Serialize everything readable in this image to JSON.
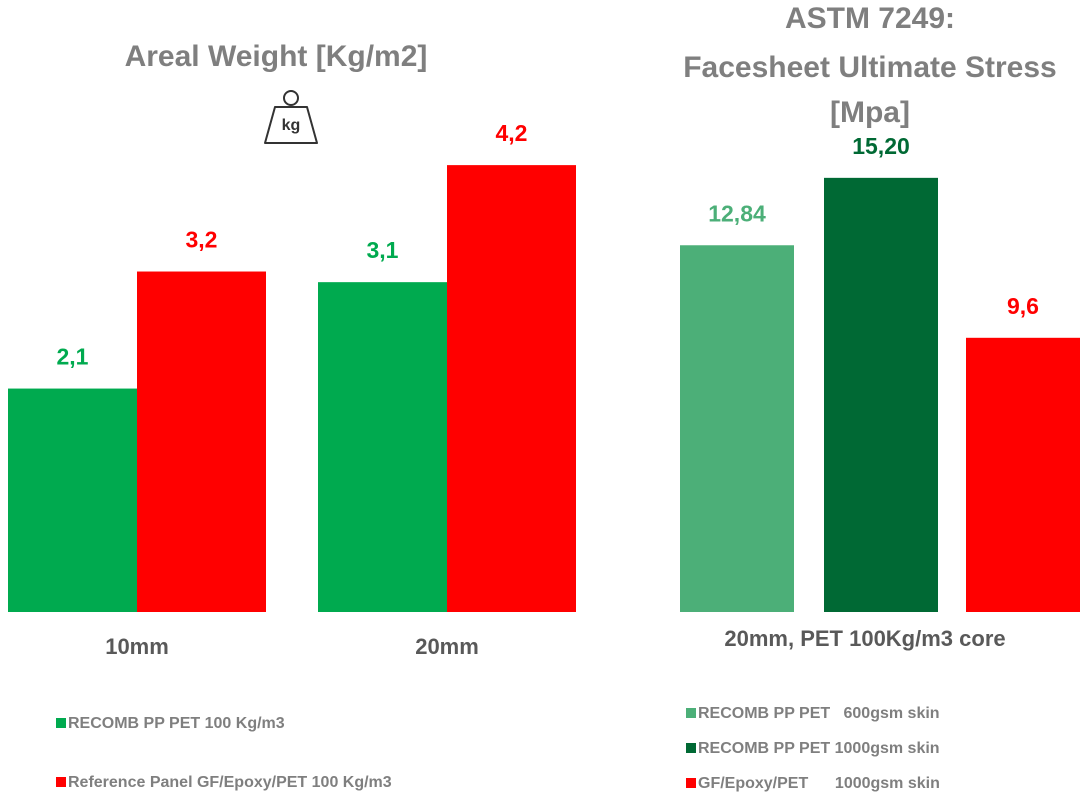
{
  "chart_data": [
    {
      "type": "bar",
      "title": "Areal Weight [Kg/m2]",
      "categories": [
        "10mm",
        "20mm"
      ],
      "series": [
        {
          "name": "RECOMB PP PET 100 Kg/m3",
          "color": "#00aa4f",
          "values": [
            2.1,
            3.1
          ],
          "value_labels": [
            "2,1",
            "3,1"
          ]
        },
        {
          "name": "Reference Panel GF/Epoxy/PET 100 Kg/m3",
          "color": "#ff0000",
          "values": [
            3.2,
            4.2
          ],
          "value_labels": [
            "3,2",
            "4,2"
          ]
        }
      ],
      "ylim": [
        0,
        5
      ]
    },
    {
      "type": "bar",
      "title": [
        "ASTM 7249:",
        "Facesheet Ultimate Stress",
        "[Mpa]"
      ],
      "x_label": "20mm, PET 100Kg/m3 core",
      "series": [
        {
          "name": "RECOMB PP PET   600gsm skin",
          "color": "#4caf78",
          "values": [
            12.84
          ],
          "value_labels": [
            "12,84"
          ]
        },
        {
          "name": "RECOMB PP PET 1000gsm skin",
          "color": "#006934",
          "values": [
            15.2
          ],
          "value_labels": [
            "15,20"
          ]
        },
        {
          "name": "GF/Epoxy/PET      1000gsm skin",
          "color": "#ff0000",
          "values": [
            9.6
          ],
          "value_labels": [
            "9,6"
          ]
        }
      ],
      "ylim": [
        0,
        16
      ]
    }
  ],
  "icon": {
    "label": "kg"
  }
}
